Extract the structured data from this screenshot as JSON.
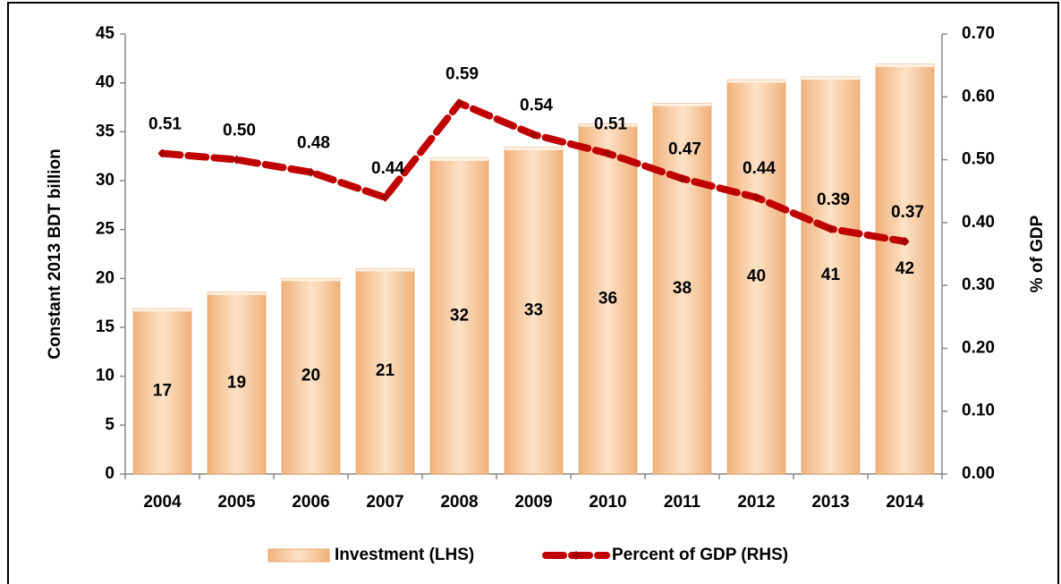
{
  "chart_data": {
    "type": "combo",
    "y_label": "Constant 2013 BDT billion",
    "y2_label": "% of GDP",
    "categories": [
      "2004",
      "2005",
      "2006",
      "2007",
      "2008",
      "2009",
      "2010",
      "2011",
      "2012",
      "2013",
      "2014"
    ],
    "series": [
      {
        "name": "Investment (LHS)",
        "type": "bar",
        "color": "#f5c394",
        "values": [
          16.9,
          18.6,
          20,
          21,
          32.3,
          33.4,
          35.8,
          37.9,
          40.3,
          40.6,
          41.9
        ],
        "value_labels": [
          "17",
          "19",
          "20",
          "21",
          "32",
          "33",
          "36",
          "38",
          "40",
          "41",
          "42"
        ]
      },
      {
        "name": "Percent of GDP (RHS)",
        "type": "line",
        "axis": "y2",
        "color": "#c00000",
        "values": [
          0.51,
          0.5,
          0.48,
          0.44,
          0.59,
          0.54,
          0.51,
          0.47,
          0.44,
          0.39,
          0.37
        ],
        "value_labels": [
          "0.51",
          "0.50",
          "0.48",
          "0.44",
          "0.59",
          "0.54",
          "0.51",
          "0.47",
          "0.44",
          "0.39",
          "0.37"
        ]
      }
    ],
    "ylim": [
      0,
      45
    ],
    "yticks": [
      0,
      5,
      10,
      15,
      20,
      25,
      30,
      35,
      40,
      45
    ],
    "y2lim": [
      0,
      0.7
    ],
    "y2ticks": [
      {
        "value": 0,
        "label": "0.00"
      },
      {
        "value": 0.1,
        "label": "0.10"
      },
      {
        "value": 0.2,
        "label": "0.20"
      },
      {
        "value": 0.3,
        "label": "0.30"
      },
      {
        "value": 0.4,
        "label": "0.40"
      },
      {
        "value": 0.5,
        "label": "0.50"
      },
      {
        "value": 0.6,
        "label": "0.60"
      },
      {
        "value": 0.7,
        "label": "0.70"
      }
    ],
    "grid": false,
    "legend": "bottom"
  }
}
